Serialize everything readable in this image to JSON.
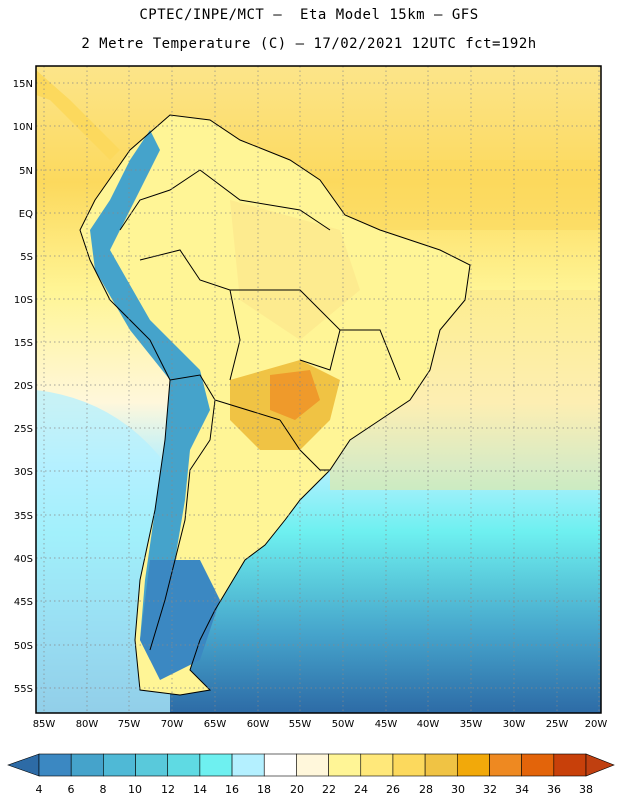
{
  "header": {
    "line1": "CPTEC/INPE/MCT –  Eta Model 15km – GFS",
    "line2": "2 Metre Temperature (C) – 17/02/2021 12UTC fct=192h"
  },
  "map": {
    "lat_labels": [
      "15N",
      "10N",
      "5N",
      "EQ",
      "5S",
      "10S",
      "15S",
      "20S",
      "25S",
      "30S",
      "35S",
      "40S",
      "45S",
      "50S",
      "55S"
    ],
    "lon_labels": [
      "85W",
      "80W",
      "75W",
      "70W",
      "65W",
      "60W",
      "55W",
      "50W",
      "45W",
      "40W",
      "35W",
      "30W",
      "25W",
      "20W"
    ]
  },
  "colorbar": {
    "labels": [
      "4",
      "6",
      "8",
      "10",
      "12",
      "14",
      "16",
      "18",
      "20",
      "22",
      "24",
      "26",
      "28",
      "30",
      "32",
      "34",
      "36",
      "38"
    ],
    "colors": [
      "#2d6ba6",
      "#3b88c2",
      "#45a3cb",
      "#4fb9d6",
      "#59c9db",
      "#5fdae3",
      "#6ef0f0",
      "#b4f0ff",
      "#ffffff",
      "#fff7db",
      "#fff596",
      "#ffe87a",
      "#fcd95d",
      "#f0c344",
      "#f2a90a",
      "#ee8921",
      "#e3640a",
      "#c8400a",
      "#c04010"
    ]
  },
  "palette": {
    "ocean_north": "#fcd95d",
    "ocean_mid": "#fff596",
    "ocean_cool": "#b4f0ff",
    "ocean_cold": "#59c9db",
    "ocean_south": "#3b88c2",
    "land_warm": "#fff596",
    "land_hot": "#f0c344",
    "andes": "#45a3cb"
  }
}
